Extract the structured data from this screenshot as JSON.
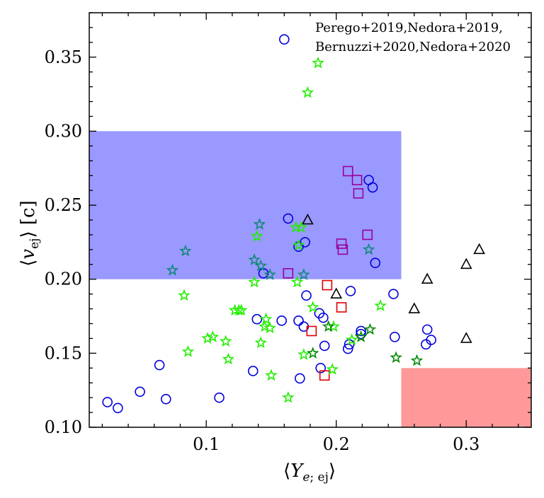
{
  "chart_data": {
    "type": "scatter",
    "xlabel": "⟨Y_{e; ej}⟩",
    "ylabel": "⟨v_{ej}⟩ [c]",
    "xlim": [
      0.01,
      0.35
    ],
    "ylim": [
      0.1,
      0.38
    ],
    "xticks": [
      0.1,
      0.2,
      0.3
    ],
    "xtick_labels": [
      "0.1",
      "0.2",
      "0.3"
    ],
    "yticks": [
      0.1,
      0.15,
      0.2,
      0.25,
      0.3,
      0.35
    ],
    "ytick_labels": [
      "0.10",
      "0.15",
      "0.20",
      "0.25",
      "0.30",
      "0.35"
    ],
    "grid": false,
    "annotation_lines": [
      "Perego+2019,Nedora+2019,",
      "Bernuzzi+2020,Nedora+2020"
    ],
    "regions": [
      {
        "x": [
          0.01,
          0.25
        ],
        "y": [
          0.2,
          0.3
        ],
        "color": "#9999ff"
      },
      {
        "x": [
          0.25,
          0.35
        ],
        "y": [
          0.1,
          0.14
        ],
        "color": "#ff9999"
      }
    ],
    "series": [
      {
        "marker": "circle",
        "color": "#0000dd",
        "points": [
          [
            0.16,
            0.362
          ],
          [
            0.163,
            0.241
          ],
          [
            0.171,
            0.222
          ],
          [
            0.176,
            0.225
          ],
          [
            0.144,
            0.204
          ],
          [
            0.225,
            0.267
          ],
          [
            0.228,
            0.262
          ],
          [
            0.23,
            0.211
          ],
          [
            0.177,
            0.189
          ],
          [
            0.211,
            0.192
          ],
          [
            0.244,
            0.19
          ],
          [
            0.187,
            0.177
          ],
          [
            0.19,
            0.174
          ],
          [
            0.139,
            0.173
          ],
          [
            0.158,
            0.172
          ],
          [
            0.171,
            0.172
          ],
          [
            0.175,
            0.168
          ],
          [
            0.219,
            0.165
          ],
          [
            0.219,
            0.163
          ],
          [
            0.21,
            0.156
          ],
          [
            0.209,
            0.153
          ],
          [
            0.191,
            0.155
          ],
          [
            0.245,
            0.161
          ],
          [
            0.27,
            0.166
          ],
          [
            0.273,
            0.159
          ],
          [
            0.269,
            0.156
          ],
          [
            0.188,
            0.14
          ],
          [
            0.136,
            0.138
          ],
          [
            0.172,
            0.133
          ],
          [
            0.064,
            0.142
          ],
          [
            0.049,
            0.124
          ],
          [
            0.069,
            0.119
          ],
          [
            0.11,
            0.12
          ],
          [
            0.024,
            0.117
          ],
          [
            0.032,
            0.113
          ]
        ]
      },
      {
        "marker": "square",
        "color": "#990099",
        "points": [
          [
            0.209,
            0.273
          ],
          [
            0.216,
            0.267
          ],
          [
            0.217,
            0.258
          ],
          [
            0.224,
            0.23
          ],
          [
            0.204,
            0.224
          ],
          [
            0.205,
            0.22
          ],
          [
            0.163,
            0.204
          ]
        ]
      },
      {
        "marker": "square",
        "color": "#dd0000",
        "points": [
          [
            0.193,
            0.196
          ],
          [
            0.204,
            0.181
          ],
          [
            0.181,
            0.165
          ],
          [
            0.191,
            0.135
          ]
        ]
      },
      {
        "marker": "triangle",
        "color": "#000000",
        "points": [
          [
            0.178,
            0.24
          ],
          [
            0.31,
            0.22
          ],
          [
            0.3,
            0.21
          ],
          [
            0.27,
            0.2
          ],
          [
            0.2,
            0.19
          ],
          [
            0.26,
            0.18
          ],
          [
            0.3,
            0.16
          ]
        ]
      },
      {
        "marker": "star",
        "color": "#22ee00",
        "points": [
          [
            0.186,
            0.346
          ],
          [
            0.178,
            0.326
          ],
          [
            0.169,
            0.235
          ],
          [
            0.173,
            0.235
          ],
          [
            0.139,
            0.229
          ],
          [
            0.171,
            0.223
          ],
          [
            0.137,
            0.198
          ],
          [
            0.17,
            0.198
          ],
          [
            0.083,
            0.189
          ],
          [
            0.182,
            0.181
          ],
          [
            0.234,
            0.182
          ],
          [
            0.122,
            0.179
          ],
          [
            0.125,
            0.179
          ],
          [
            0.127,
            0.179
          ],
          [
            0.146,
            0.173
          ],
          [
            0.145,
            0.168
          ],
          [
            0.149,
            0.167
          ],
          [
            0.198,
            0.168
          ],
          [
            0.101,
            0.16
          ],
          [
            0.105,
            0.161
          ],
          [
            0.115,
            0.158
          ],
          [
            0.142,
            0.157
          ],
          [
            0.212,
            0.159
          ],
          [
            0.086,
            0.151
          ],
          [
            0.117,
            0.146
          ],
          [
            0.175,
            0.149
          ],
          [
            0.15,
            0.135
          ],
          [
            0.197,
            0.139
          ],
          [
            0.163,
            0.12
          ]
        ]
      },
      {
        "marker": "star",
        "color": "#008800",
        "points": [
          [
            0.194,
            0.168
          ],
          [
            0.182,
            0.15
          ],
          [
            0.226,
            0.166
          ],
          [
            0.219,
            0.161
          ],
          [
            0.246,
            0.147
          ],
          [
            0.262,
            0.145
          ]
        ]
      },
      {
        "marker": "star",
        "color": "#118877",
        "points": [
          [
            0.084,
            0.219
          ],
          [
            0.074,
            0.206
          ],
          [
            0.141,
            0.237
          ],
          [
            0.137,
            0.213
          ],
          [
            0.142,
            0.209
          ],
          [
            0.149,
            0.203
          ],
          [
            0.175,
            0.203
          ],
          [
            0.225,
            0.22
          ]
        ]
      }
    ]
  }
}
